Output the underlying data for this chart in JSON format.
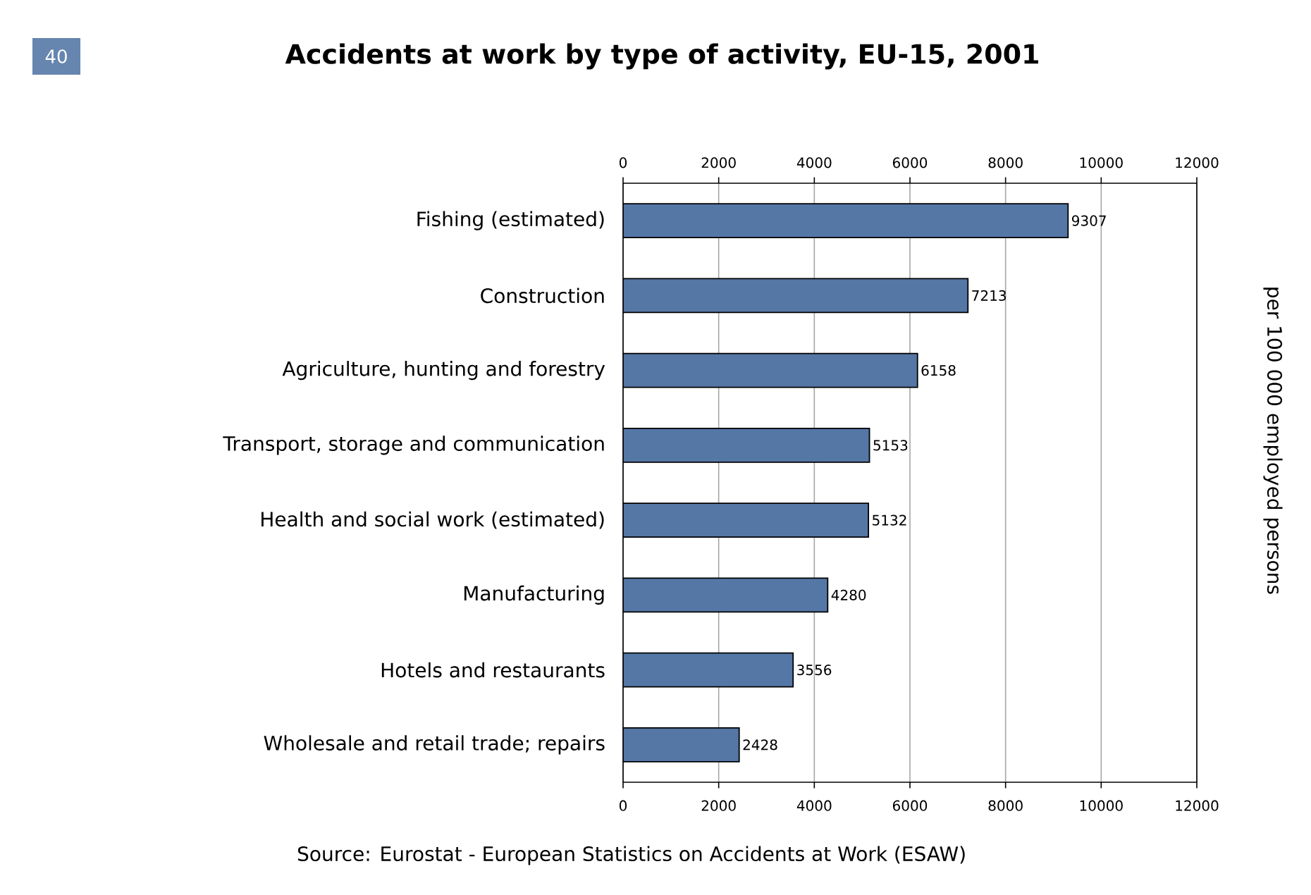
{
  "chart_data": {
    "type": "bar",
    "orientation": "horizontal",
    "title": "Accidents at work by type of activity, EU-15, 2001",
    "ylabel": "per 100 000 employed persons",
    "categories": [
      "Fishing (estimated)",
      "Construction",
      "Agriculture, hunting and forestry",
      "Transport, storage and communication",
      "Health and social work (estimated)",
      "Manufacturing",
      "Hotels and restaurants",
      "Wholesale and retail trade; repairs"
    ],
    "values": [
      9307,
      7213,
      6158,
      5153,
      5132,
      4280,
      3556,
      2428
    ],
    "color": "#5577a6",
    "xlim": [
      0,
      12000
    ],
    "xticks": [
      0,
      2000,
      4000,
      6000,
      8000,
      10000,
      12000
    ],
    "x2lim": [
      0,
      12000
    ],
    "x2ticks": [
      0,
      2000,
      4000,
      6000,
      8000,
      10000,
      12000
    ],
    "grid": "x",
    "data_labels": true,
    "annotations": [
      "40",
      "Source: Eurostat - European Statistics on Accidents at Work (ESAW)"
    ]
  }
}
